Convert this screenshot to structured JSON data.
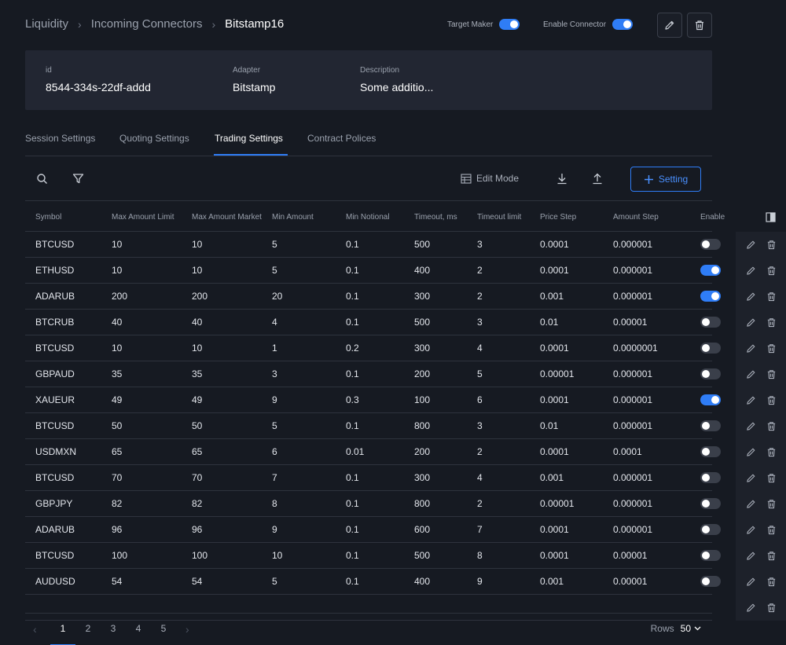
{
  "breadcrumb": {
    "root": "Liquidity",
    "parent": "Incoming Connectors",
    "current": "Bitstamp16"
  },
  "header": {
    "target_maker_label": "Target Maker",
    "target_maker_on": true,
    "enable_connector_label": "Enable Connector",
    "enable_connector_on": true
  },
  "info": {
    "id_label": "id",
    "id_value": "8544-334s-22df-addd",
    "adapter_label": "Adapter",
    "adapter_value": "Bitstamp",
    "description_label": "Description",
    "description_value": "Some additio..."
  },
  "tabs": [
    {
      "label": "Session Settings",
      "active": false
    },
    {
      "label": "Quoting Settings",
      "active": false
    },
    {
      "label": "Trading Settings",
      "active": true
    },
    {
      "label": "Contract Polices",
      "active": false
    }
  ],
  "toolbar": {
    "edit_mode_label": "Edit Mode",
    "add_label": "Setting"
  },
  "table": {
    "columns": [
      "Symbol",
      "Max Amount Limit",
      "Max Amount Market",
      "Min Amount",
      "Min Notional",
      "Timeout, ms",
      "Timeout limit",
      "Price Step",
      "Amount Step",
      "Enable"
    ],
    "rows": [
      {
        "symbol": "BTCUSD",
        "max_limit": "10",
        "max_market": "10",
        "min_amount": "5",
        "min_notional": "0.1",
        "timeout_ms": "500",
        "timeout_limit": "3",
        "price_step": "0.0001",
        "amount_step": "0.000001",
        "enabled": false
      },
      {
        "symbol": "ETHUSD",
        "max_limit": "10",
        "max_market": "10",
        "min_amount": "5",
        "min_notional": "0.1",
        "timeout_ms": "400",
        "timeout_limit": "2",
        "price_step": "0.0001",
        "amount_step": "0.000001",
        "enabled": true
      },
      {
        "symbol": "ADARUB",
        "max_limit": "200",
        "max_market": "200",
        "min_amount": "20",
        "min_notional": "0.1",
        "timeout_ms": "300",
        "timeout_limit": "2",
        "price_step": "0.001",
        "amount_step": "0.000001",
        "enabled": true
      },
      {
        "symbol": "BTCRUB",
        "max_limit": "40",
        "max_market": "40",
        "min_amount": "4",
        "min_notional": "0.1",
        "timeout_ms": "500",
        "timeout_limit": "3",
        "price_step": "0.01",
        "amount_step": "0.00001",
        "enabled": false
      },
      {
        "symbol": "BTCUSD",
        "max_limit": "10",
        "max_market": "10",
        "min_amount": "1",
        "min_notional": "0.2",
        "timeout_ms": "300",
        "timeout_limit": "4",
        "price_step": "0.0001",
        "amount_step": "0.0000001",
        "enabled": false
      },
      {
        "symbol": "GBPAUD",
        "max_limit": "35",
        "max_market": "35",
        "min_amount": "3",
        "min_notional": "0.1",
        "timeout_ms": "200",
        "timeout_limit": "5",
        "price_step": "0.00001",
        "amount_step": "0.000001",
        "enabled": false
      },
      {
        "symbol": "XAUEUR",
        "max_limit": "49",
        "max_market": "49",
        "min_amount": "9",
        "min_notional": "0.3",
        "timeout_ms": "100",
        "timeout_limit": "6",
        "price_step": "0.0001",
        "amount_step": "0.000001",
        "enabled": true
      },
      {
        "symbol": "BTCUSD",
        "max_limit": "50",
        "max_market": "50",
        "min_amount": "5",
        "min_notional": "0.1",
        "timeout_ms": "800",
        "timeout_limit": "3",
        "price_step": "0.01",
        "amount_step": "0.000001",
        "enabled": false
      },
      {
        "symbol": "USDMXN",
        "max_limit": "65",
        "max_market": "65",
        "min_amount": "6",
        "min_notional": "0.01",
        "timeout_ms": "200",
        "timeout_limit": "2",
        "price_step": "0.0001",
        "amount_step": "0.0001",
        "enabled": false
      },
      {
        "symbol": "BTCUSD",
        "max_limit": "70",
        "max_market": "70",
        "min_amount": "7",
        "min_notional": "0.1",
        "timeout_ms": "300",
        "timeout_limit": "4",
        "price_step": "0.001",
        "amount_step": "0.000001",
        "enabled": false
      },
      {
        "symbol": "GBPJPY",
        "max_limit": "82",
        "max_market": "82",
        "min_amount": "8",
        "min_notional": "0.1",
        "timeout_ms": "800",
        "timeout_limit": "2",
        "price_step": "0.00001",
        "amount_step": "0.000001",
        "enabled": false
      },
      {
        "symbol": "ADARUB",
        "max_limit": "96",
        "max_market": "96",
        "min_amount": "9",
        "min_notional": "0.1",
        "timeout_ms": "600",
        "timeout_limit": "7",
        "price_step": "0.0001",
        "amount_step": "0.000001",
        "enabled": false
      },
      {
        "symbol": "BTCUSD",
        "max_limit": "100",
        "max_market": "100",
        "min_amount": "10",
        "min_notional": "0.1",
        "timeout_ms": "500",
        "timeout_limit": "8",
        "price_step": "0.0001",
        "amount_step": "0.00001",
        "enabled": false
      },
      {
        "symbol": "AUDUSD",
        "max_limit": "54",
        "max_market": "54",
        "min_amount": "5",
        "min_notional": "0.1",
        "timeout_ms": "400",
        "timeout_limit": "9",
        "price_step": "0.001",
        "amount_step": "0.00001",
        "enabled": false
      }
    ]
  },
  "pagination": {
    "pages": [
      "1",
      "2",
      "3",
      "4",
      "5"
    ],
    "current_page": "1",
    "rows_label": "Rows",
    "rows_value": "50"
  },
  "icons": {
    "search": "search-icon",
    "filter": "filter-icon",
    "edit_mode": "table-icon",
    "download": "download-icon",
    "upload": "upload-icon",
    "add": "plus-icon",
    "edit": "pencil-icon",
    "delete": "trash-icon",
    "columns": "columns-icon"
  },
  "colors": {
    "accent": "#2f7df6",
    "background": "#161a22",
    "panel": "#222632"
  }
}
